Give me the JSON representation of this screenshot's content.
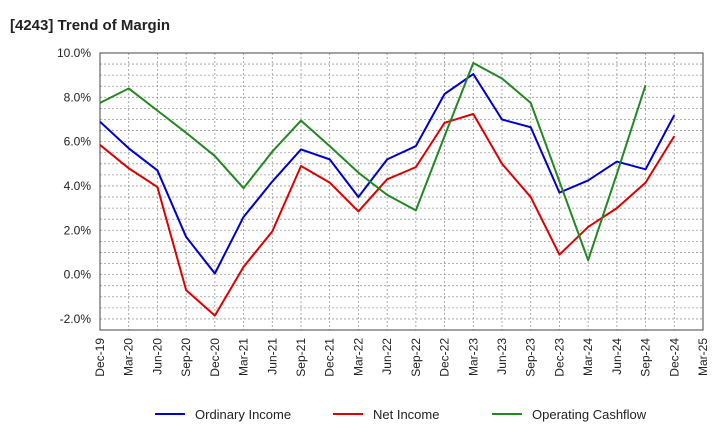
{
  "chart_data": {
    "type": "line",
    "title": "[4243]  Trend of Margin",
    "xlabel": "",
    "ylabel": "",
    "categories": [
      "Dec-19",
      "Mar-20",
      "Jun-20",
      "Sep-20",
      "Dec-20",
      "Mar-21",
      "Jun-21",
      "Sep-21",
      "Dec-21",
      "Mar-22",
      "Jun-22",
      "Sep-22",
      "Dec-22",
      "Mar-23",
      "Jun-23",
      "Sep-23",
      "Dec-23",
      "Mar-24",
      "Jun-24",
      "Sep-24",
      "Dec-24",
      "Mar-25"
    ],
    "ylim": [
      -2.5,
      10.0
    ],
    "yticks": [
      -2.0,
      0.0,
      2.0,
      4.0,
      6.0,
      8.0,
      10.0
    ],
    "ytick_labels": [
      "-2.0%",
      "0.0%",
      "2.0%",
      "4.0%",
      "6.0%",
      "8.0%",
      "10.0%"
    ],
    "grid": true,
    "legend_position": "bottom",
    "series": [
      {
        "name": "Ordinary Income",
        "color": "#0000cc",
        "values": [
          6.9,
          5.7,
          4.7,
          1.7,
          0.05,
          2.6,
          4.2,
          5.65,
          5.2,
          3.5,
          5.2,
          5.8,
          8.15,
          9.05,
          7.0,
          6.65,
          3.7,
          4.25,
          5.1,
          4.75,
          7.2,
          null
        ]
      },
      {
        "name": "Net Income",
        "color": "#dd0000",
        "values": [
          5.85,
          4.8,
          3.95,
          -0.7,
          -1.85,
          0.35,
          1.95,
          4.9,
          4.15,
          2.85,
          4.3,
          4.85,
          6.85,
          7.25,
          5.0,
          3.5,
          0.9,
          2.15,
          3.0,
          4.15,
          6.25,
          null
        ]
      },
      {
        "name": "Operating Cashflow",
        "color": "#228822",
        "values": [
          7.75,
          8.4,
          7.4,
          6.4,
          5.35,
          3.9,
          5.55,
          6.95,
          5.8,
          4.6,
          3.6,
          2.9,
          6.25,
          9.55,
          8.85,
          7.75,
          4.2,
          0.65,
          4.55,
          8.55,
          null,
          null
        ]
      }
    ]
  }
}
